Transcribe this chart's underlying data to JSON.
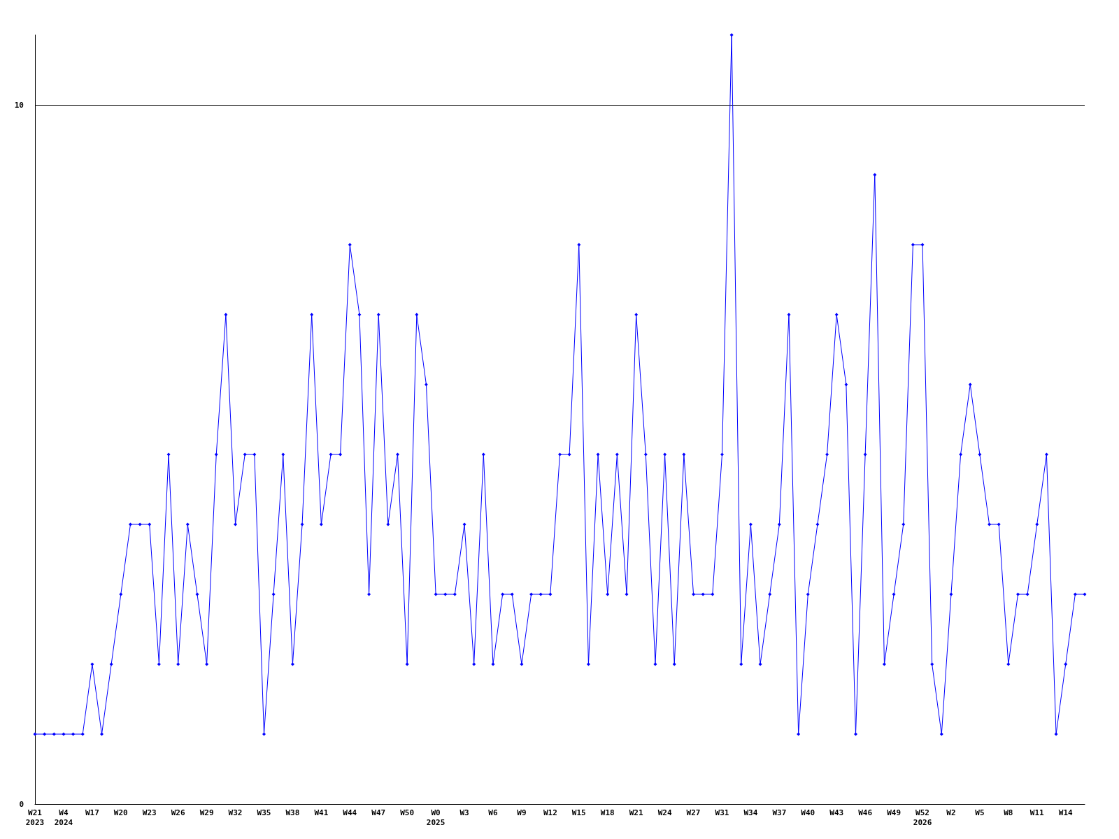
{
  "chart_data": {
    "type": "line",
    "categories": [
      "W21\n2023",
      null,
      null,
      "W4\n2024",
      null,
      null,
      "W17",
      null,
      null,
      "W20",
      null,
      null,
      "W23",
      null,
      null,
      "W26",
      null,
      null,
      "W29",
      null,
      null,
      "W32",
      null,
      null,
      "W35",
      null,
      null,
      "W38",
      null,
      null,
      "W41",
      null,
      null,
      "W44",
      null,
      null,
      "W47",
      null,
      null,
      "W50",
      null,
      null,
      "W0\n2025",
      null,
      null,
      "W3",
      null,
      null,
      "W6",
      null,
      null,
      "W9",
      null,
      null,
      "W12",
      null,
      null,
      "W15",
      null,
      null,
      "W18",
      null,
      null,
      "W21",
      null,
      null,
      "W24",
      null,
      null,
      "W27",
      null,
      null,
      "W31",
      null,
      null,
      "W34",
      null,
      null,
      "W37",
      null,
      null,
      "W40",
      null,
      null,
      "W43",
      null,
      null,
      "W46",
      null,
      null,
      "W49",
      null,
      null,
      "W52\n2026",
      null,
      null,
      "W2",
      null,
      null,
      "W5",
      null,
      null,
      "W8",
      null,
      null,
      "W11",
      null,
      null,
      "W14",
      null,
      null
    ],
    "series": [
      {
        "color": "#0000ff",
        "values": [
          1,
          1,
          1,
          1,
          1,
          1,
          2,
          1,
          2,
          3,
          4,
          4,
          4,
          2,
          5,
          2,
          4,
          3,
          2,
          5,
          7,
          4,
          5,
          5,
          1,
          3,
          5,
          2,
          4,
          7,
          4,
          5,
          5,
          8,
          7,
          3,
          7,
          4,
          5,
          2,
          7,
          6,
          3,
          3,
          3,
          4,
          2,
          5,
          2,
          3,
          3,
          2,
          3,
          3,
          3,
          5,
          5,
          8,
          2,
          5,
          3,
          5,
          3,
          7,
          5,
          2,
          5,
          2,
          5,
          3,
          3,
          3,
          5,
          11,
          2,
          4,
          2,
          3,
          4,
          7,
          1,
          3,
          4,
          5,
          7,
          6,
          1,
          5,
          9,
          2,
          3,
          4,
          8,
          8,
          2,
          1,
          3,
          5,
          6,
          5,
          4,
          4,
          2,
          3,
          3,
          4,
          5,
          1,
          2,
          3,
          3
        ]
      }
    ],
    "ylim": [
      0,
      11
    ],
    "yticks": [
      0,
      10
    ],
    "grid": "y",
    "marker": "diamond",
    "line_style": "solid"
  }
}
